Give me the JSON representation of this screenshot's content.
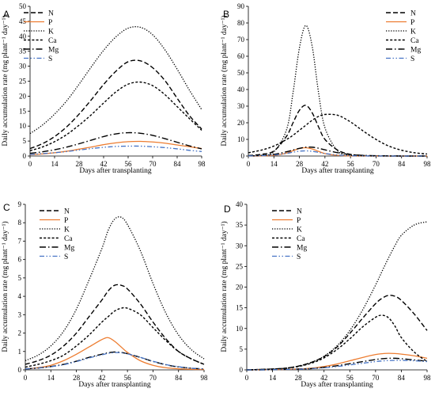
{
  "colors": {
    "N": "#000000",
    "P": "#ED7D31",
    "K": "#000000",
    "Ca": "#000000",
    "Mg": "#000000",
    "S": "#4472C4",
    "axis": "#000000"
  },
  "chart_data": [
    {
      "panel": "A",
      "type": "line",
      "xlabel": "Days after transplanting",
      "ylabel": "Daily accumulation rate (mg plant⁻¹ day⁻¹)",
      "xlim": [
        0,
        98
      ],
      "ylim": [
        0,
        50
      ],
      "xticks": [
        0,
        14,
        28,
        42,
        56,
        70,
        84,
        98
      ],
      "yticks": [
        0,
        5,
        10,
        15,
        20,
        25,
        30,
        35,
        40,
        45,
        50
      ],
      "legend": "top-left",
      "x": [
        0,
        7,
        14,
        21,
        28,
        35,
        42,
        49,
        56,
        63,
        70,
        77,
        84,
        91,
        98
      ],
      "series": [
        {
          "name": "N",
          "values": [
            2.5,
            4.1,
            6.5,
            9.8,
            14.0,
            18.8,
            23.9,
            28.3,
            31.5,
            31.8,
            29.5,
            25.2,
            19.3,
            13.5,
            9.0
          ]
        },
        {
          "name": "P",
          "values": [
            0.4,
            0.7,
            1.1,
            1.6,
            2.3,
            3.0,
            3.8,
            4.4,
            4.8,
            4.9,
            4.7,
            4.3,
            3.7,
            3.1,
            2.5
          ]
        },
        {
          "name": "K",
          "values": [
            7.5,
            10.3,
            14.0,
            18.5,
            24.0,
            29.8,
            35.3,
            39.8,
            42.7,
            43.0,
            40.5,
            35.5,
            29.0,
            22.0,
            15.5
          ]
        },
        {
          "name": "Ca",
          "values": [
            1.8,
            3.0,
            4.8,
            7.2,
            10.3,
            13.8,
            17.7,
            21.4,
            24.0,
            24.7,
            23.5,
            20.5,
            16.5,
            12.5,
            8.6
          ]
        },
        {
          "name": "Mg",
          "values": [
            0.9,
            1.4,
            2.1,
            3.0,
            4.1,
            5.3,
            6.5,
            7.4,
            7.8,
            7.6,
            6.9,
            5.8,
            4.6,
            3.4,
            2.4
          ]
        },
        {
          "name": "S",
          "values": [
            0.5,
            0.8,
            1.1,
            1.5,
            2.0,
            2.5,
            2.9,
            3.2,
            3.3,
            3.3,
            3.1,
            2.8,
            2.4,
            1.9,
            1.5
          ]
        }
      ]
    },
    {
      "panel": "B",
      "type": "line",
      "xlabel": "Days after transplanting",
      "ylabel": "Daily accumulation rate (mg plant⁻¹ day⁻¹)",
      "xlim": [
        0,
        98
      ],
      "ylim": [
        0,
        90
      ],
      "xticks": [
        0,
        14,
        28,
        42,
        56,
        70,
        84,
        98
      ],
      "yticks": [
        0,
        10,
        20,
        30,
        40,
        50,
        60,
        70,
        80,
        90
      ],
      "legend": "top-right",
      "x": [
        0,
        7,
        14,
        21,
        24.5,
        28,
        31.5,
        35,
        38.5,
        42,
        49,
        56,
        63,
        70,
        77,
        84,
        91,
        98
      ],
      "series": [
        {
          "name": "N",
          "values": [
            0.3,
            1.0,
            3.0,
            12.0,
            20.0,
            27.5,
            30.5,
            26.0,
            17.5,
            10.0,
            3.5,
            1.0,
            0.3,
            0.1,
            0.0,
            0.0,
            0.0,
            0.0
          ]
        },
        {
          "name": "P",
          "values": [
            0.0,
            0.1,
            0.4,
            1.8,
            3.2,
            4.5,
            5.0,
            4.2,
            2.8,
            1.5,
            0.4,
            0.1,
            0.0,
            0.0,
            0.0,
            0.0,
            0.0,
            0.0
          ]
        },
        {
          "name": "K",
          "values": [
            0.1,
            0.4,
            2.5,
            16.0,
            38.0,
            65.0,
            78.5,
            66.0,
            38.0,
            17.0,
            3.0,
            0.5,
            0.1,
            0.0,
            0.0,
            0.0,
            0.0,
            0.0
          ]
        },
        {
          "name": "Ca",
          "values": [
            2.0,
            3.5,
            6.0,
            10.0,
            12.5,
            15.5,
            18.5,
            21.5,
            23.8,
            25.0,
            24.5,
            20.5,
            15.0,
            10.0,
            6.0,
            3.5,
            2.0,
            1.2
          ]
        },
        {
          "name": "Mg",
          "values": [
            0.1,
            0.3,
            1.0,
            2.6,
            3.6,
            4.6,
            5.3,
            5.3,
            4.7,
            3.7,
            2.0,
            0.9,
            0.4,
            0.2,
            0.1,
            0.0,
            0.0,
            0.0
          ]
        },
        {
          "name": "S",
          "values": [
            0.1,
            0.2,
            0.6,
            1.6,
            2.3,
            2.9,
            3.1,
            2.8,
            2.2,
            1.5,
            0.6,
            0.2,
            0.1,
            0.0,
            0.0,
            0.0,
            0.0,
            0.0
          ]
        }
      ]
    },
    {
      "panel": "C",
      "type": "line",
      "xlabel": "Days after transplanting",
      "ylabel": "Daily accumulation rate (mg plant⁻¹ day⁻¹)",
      "xlim": [
        0,
        98
      ],
      "ylim": [
        0,
        9
      ],
      "xticks": [
        0,
        14,
        28,
        42,
        56,
        70,
        84,
        98
      ],
      "yticks": [
        0,
        1,
        2,
        3,
        4,
        5,
        6,
        7,
        8,
        9
      ],
      "legend": "top-left",
      "x": [
        0,
        7,
        14,
        21,
        28,
        35,
        42,
        45.5,
        49,
        52.5,
        56,
        63,
        70,
        77,
        84,
        91,
        98
      ],
      "series": [
        {
          "name": "N",
          "values": [
            0.3,
            0.5,
            0.8,
            1.3,
            2.0,
            2.9,
            3.8,
            4.3,
            4.6,
            4.6,
            4.4,
            3.6,
            2.6,
            1.7,
            1.0,
            0.6,
            0.3
          ]
        },
        {
          "name": "P",
          "values": [
            0.05,
            0.12,
            0.25,
            0.5,
            0.85,
            1.25,
            1.65,
            1.75,
            1.55,
            1.25,
            0.95,
            0.5,
            0.25,
            0.12,
            0.06,
            0.03,
            0.02
          ]
        },
        {
          "name": "K",
          "values": [
            0.5,
            0.8,
            1.3,
            2.1,
            3.3,
            4.9,
            6.6,
            7.6,
            8.2,
            8.3,
            7.9,
            6.5,
            4.7,
            3.1,
            1.9,
            1.1,
            0.6
          ]
        },
        {
          "name": "Ca",
          "values": [
            0.15,
            0.3,
            0.5,
            0.8,
            1.3,
            1.9,
            2.6,
            2.9,
            3.2,
            3.35,
            3.35,
            3.0,
            2.3,
            1.6,
            1.0,
            0.6,
            0.3
          ]
        },
        {
          "name": "Mg",
          "values": [
            0.05,
            0.1,
            0.18,
            0.3,
            0.47,
            0.68,
            0.85,
            0.93,
            0.97,
            0.95,
            0.88,
            0.68,
            0.46,
            0.28,
            0.16,
            0.09,
            0.05
          ]
        },
        {
          "name": "S",
          "values": [
            0.05,
            0.1,
            0.17,
            0.28,
            0.45,
            0.65,
            0.82,
            0.9,
            0.94,
            0.93,
            0.87,
            0.68,
            0.47,
            0.29,
            0.17,
            0.09,
            0.05
          ]
        }
      ]
    },
    {
      "panel": "D",
      "type": "line",
      "xlabel": "Days after transplanting",
      "ylabel": "Daily accumulation rate (mg plant⁻¹ day⁻¹)",
      "xlim": [
        0,
        98
      ],
      "ylim": [
        0,
        40
      ],
      "xticks": [
        0,
        14,
        28,
        42,
        56,
        70,
        84,
        98
      ],
      "yticks": [
        0,
        5,
        10,
        15,
        20,
        25,
        30,
        35,
        40
      ],
      "legend": "top-left",
      "x": [
        0,
        7,
        14,
        21,
        28,
        35,
        42,
        49,
        56,
        63,
        70,
        73.5,
        77,
        80.5,
        84,
        91,
        98
      ],
      "series": [
        {
          "name": "N",
          "values": [
            0.0,
            0.1,
            0.2,
            0.4,
            0.9,
            1.8,
            3.2,
            5.5,
            8.8,
            12.5,
            16.0,
            17.3,
            18.0,
            17.8,
            16.8,
            13.5,
            9.5
          ]
        },
        {
          "name": "P",
          "values": [
            0.0,
            0.0,
            0.05,
            0.1,
            0.2,
            0.4,
            0.8,
            1.4,
            2.2,
            3.0,
            3.7,
            3.9,
            4.0,
            3.95,
            3.8,
            3.4,
            2.8
          ]
        },
        {
          "name": "K",
          "values": [
            0.0,
            0.1,
            0.2,
            0.4,
            0.9,
            1.8,
            3.3,
            5.8,
            9.5,
            14.5,
            20.5,
            23.8,
            27.0,
            30.0,
            32.5,
            35.0,
            35.8
          ]
        },
        {
          "name": "Ca",
          "values": [
            0.0,
            0.1,
            0.2,
            0.4,
            0.8,
            1.6,
            2.9,
            4.9,
            7.5,
            10.4,
            12.7,
            13.2,
            12.6,
            10.6,
            7.8,
            4.3,
            2.0
          ]
        },
        {
          "name": "Mg",
          "values": [
            0.0,
            0.0,
            0.05,
            0.1,
            0.2,
            0.3,
            0.6,
            1.0,
            1.5,
            2.0,
            2.5,
            2.7,
            2.8,
            2.8,
            2.7,
            2.4,
            2.1
          ]
        },
        {
          "name": "S",
          "values": [
            0.0,
            0.0,
            0.05,
            0.1,
            0.15,
            0.3,
            0.5,
            0.8,
            1.2,
            1.6,
            2.0,
            2.15,
            2.25,
            2.3,
            2.3,
            2.2,
            2.0
          ]
        }
      ]
    }
  ]
}
